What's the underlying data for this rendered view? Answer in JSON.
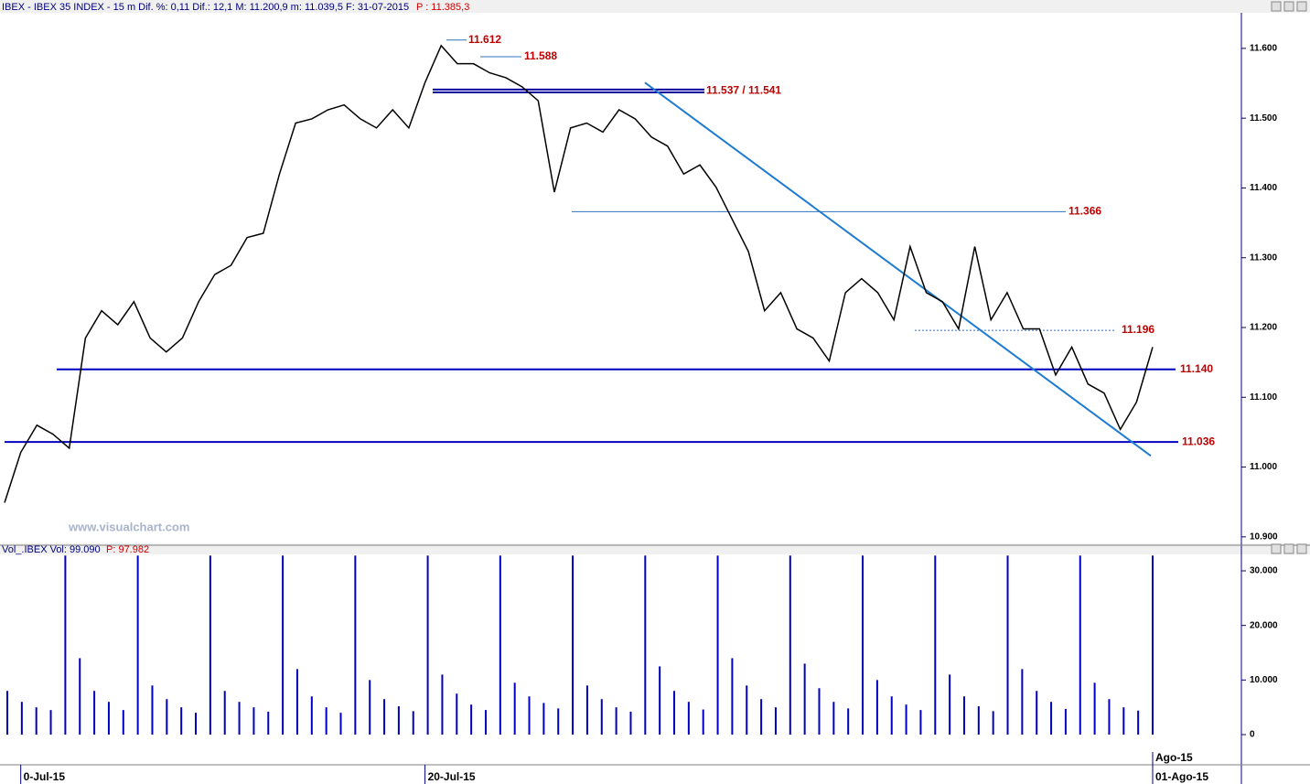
{
  "chart_data": [
    {
      "type": "line",
      "header": "IBEX - IBEX 35 INDEX - 15 m  Dif. %: 0,11  Dif.: 12,1  M: 11.200,9  m: 11.039,5  F: 31-07-2015",
      "header_price": "P : 11.385,3",
      "watermark": "www.visualchart.com",
      "color": "#000000",
      "ylim": [
        10888,
        11651
      ],
      "yticks": [
        {
          "value": 10900,
          "label": "10.900"
        },
        {
          "value": 11000,
          "label": "11.000"
        },
        {
          "value": 11100,
          "label": "11.100"
        },
        {
          "value": 11200,
          "label": "11.200"
        },
        {
          "value": 11300,
          "label": "11.300"
        },
        {
          "value": 11400,
          "label": "11.400"
        },
        {
          "value": 11500,
          "label": "11.500"
        },
        {
          "value": 11600,
          "label": "11.600"
        }
      ],
      "xlim": [
        0,
        71
      ],
      "xticks": [
        {
          "value": 1,
          "label": "0-Jul-15"
        },
        {
          "value": 26,
          "label": "20-Jul-15"
        },
        {
          "value": 71,
          "label": "01-Ago-15"
        }
      ],
      "month_tick": {
        "value": 71,
        "label": "Ago-15"
      },
      "values": [
        10949,
        11021,
        11060,
        11047,
        11027,
        11185,
        11224,
        11204,
        11237,
        11185,
        11165,
        11185,
        11237,
        11276,
        11289,
        11329,
        11335,
        11420,
        11493,
        11499,
        11512,
        11519,
        11499,
        11486,
        11512,
        11486,
        11551,
        11604,
        11578,
        11578,
        11565,
        11558,
        11545,
        11525,
        11394,
        11486,
        11493,
        11480,
        11512,
        11499,
        11473,
        11460,
        11420,
        11433,
        11401,
        11355,
        11309,
        11224,
        11250,
        11198,
        11185,
        11152,
        11250,
        11270,
        11250,
        11211,
        11316,
        11250,
        11237,
        11198,
        11316,
        11211,
        11250,
        11198,
        11198,
        11132,
        11172,
        11119,
        11106,
        11054,
        11093,
        11172
      ],
      "levels": [
        {
          "value": 11612,
          "label": "11.612"
        },
        {
          "value": 11588,
          "label": "11.588"
        },
        {
          "values": [
            11537,
            11541
          ],
          "label": "11.537 / 11.541"
        },
        {
          "value": 11366,
          "label": "11.366"
        },
        {
          "value": 11196,
          "label": "11.196"
        },
        {
          "value": 11140,
          "label": "11.140"
        },
        {
          "value": 11036,
          "label": "11.036"
        }
      ],
      "trendline": {
        "values": [
          11551,
          11016
        ]
      }
    },
    {
      "type": "bar",
      "header": "Vol_.IBEX  Vol: 99.090",
      "header_price": "P: 97.982",
      "color": "#0000c0",
      "ylim": [
        -5530,
        32850
      ],
      "yticks": [
        0,
        {
          "value": 10000,
          "label": "10.000"
        },
        {
          "value": 20000,
          "label": "20.000"
        },
        {
          "value": 30000,
          "label": "30.000"
        }
      ],
      "values": [
        8000,
        6000,
        5000,
        4500,
        32800,
        14000,
        8000,
        6000,
        4500,
        32800,
        9000,
        6500,
        5000,
        4000,
        32800,
        8000,
        6000,
        5000,
        4200,
        32800,
        12000,
        7000,
        5000,
        4000,
        32800,
        10000,
        6500,
        5200,
        4300,
        32800,
        11000,
        7500,
        5500,
        4500,
        32800,
        9500,
        7000,
        5800,
        4800,
        32800,
        9000,
        6500,
        5000,
        4200,
        32800,
        12500,
        8000,
        6000,
        4600,
        32800,
        14000,
        9000,
        6500,
        5000,
        32800,
        13000,
        8500,
        6000,
        4800,
        32800,
        10000,
        7000,
        5500,
        4500,
        32800,
        11000,
        7000,
        5200,
        4300,
        32800,
        12000,
        8000,
        6000,
        4700,
        32800,
        9500,
        6500,
        5000,
        4400,
        32800
      ]
    }
  ]
}
